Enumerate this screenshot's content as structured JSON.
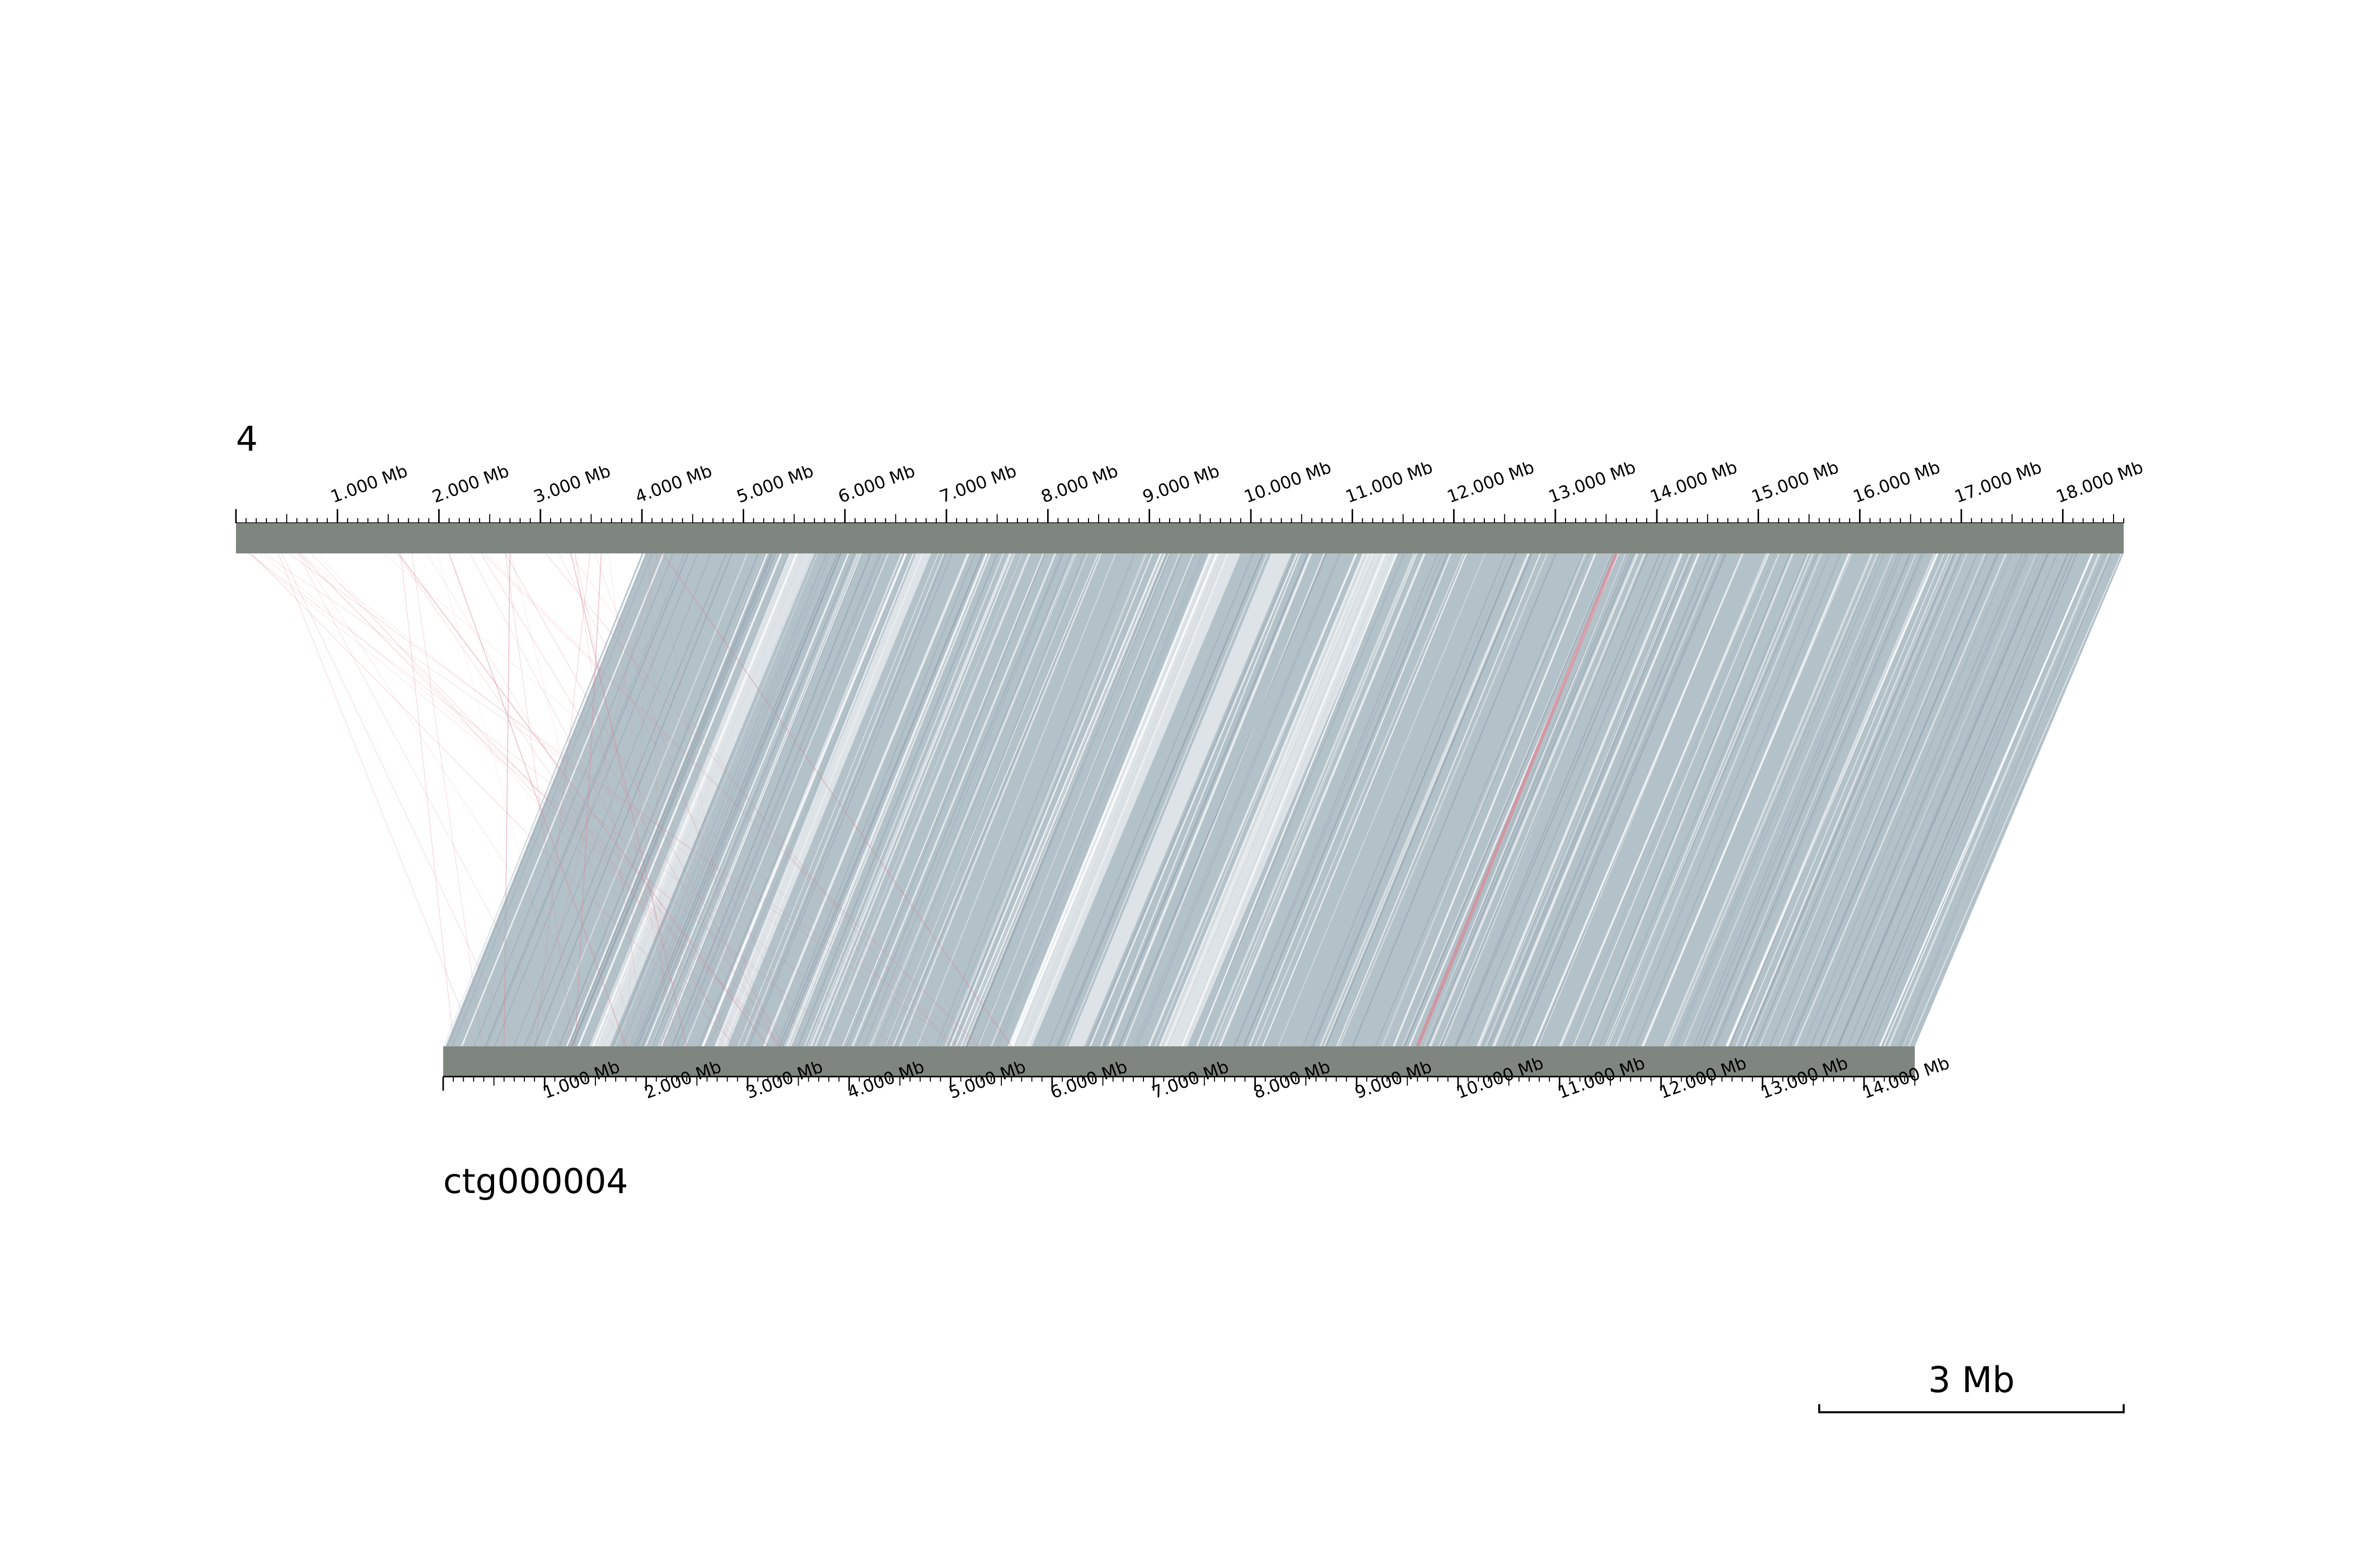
{
  "tracks": {
    "top": {
      "name": "4",
      "length_mb": 18.6,
      "label_step_mb": 1,
      "minor_step_mb": 0.1,
      "mid_step_mb": 0.5,
      "labels": [
        "1.000 Mb",
        "2.000 Mb",
        "3.000 Mb",
        "4.000 Mb",
        "5.000 Mb",
        "6.000 Mb",
        "7.000 Mb",
        "8.000 Mb",
        "9.000 Mb",
        "10.000 Mb",
        "11.000 Mb",
        "12.000 Mb",
        "13.000 Mb",
        "14.000 Mb",
        "15.000 Mb",
        "16.000 Mb",
        "17.000 Mb",
        "18.000 Mb"
      ]
    },
    "bottom": {
      "name": "ctg000004",
      "length_mb": 14.5,
      "label_step_mb": 1,
      "minor_step_mb": 0.1,
      "mid_step_mb": 0.5,
      "labels": [
        "1.000 Mb",
        "2.000 Mb",
        "3.000 Mb",
        "4.000 Mb",
        "5.000 Mb",
        "6.000 Mb",
        "7.000 Mb",
        "8.000 Mb",
        "9.000 Mb",
        "10.000 Mb",
        "11.000 Mb",
        "12.000 Mb",
        "13.000 Mb",
        "14.000 Mb"
      ]
    }
  },
  "synteny": {
    "main_block": {
      "top_start_mb": 4.0,
      "top_end_mb": 18.6,
      "bottom_start_mb": 0.0,
      "bottom_end_mb": 14.5,
      "orientation": "forward"
    },
    "inversion_line": {
      "top_mb": 13.6,
      "bottom_mb": 9.6
    },
    "scattered_inverted_links": [
      {
        "top_mb": 1.6,
        "bottom_mb": 3.2
      },
      {
        "top_mb": 2.7,
        "bottom_mb": 0.6
      },
      {
        "top_mb": 3.6,
        "bottom_mb": 1.3
      },
      {
        "top_mb": 4.2,
        "bottom_mb": 5.6
      },
      {
        "top_mb": 3.3,
        "bottom_mb": 2.4
      },
      {
        "top_mb": 2.1,
        "bottom_mb": 1.8
      }
    ],
    "colors": {
      "forward": "#b3c1c9",
      "forward_dark": "#8a9aa6",
      "inverted": "#d98a96",
      "gap": "#ffffff"
    }
  },
  "colors": {
    "track": "#7f867f",
    "axis": "#000000"
  },
  "scale_bar": {
    "label": "3 Mb",
    "length_mb": 3
  }
}
